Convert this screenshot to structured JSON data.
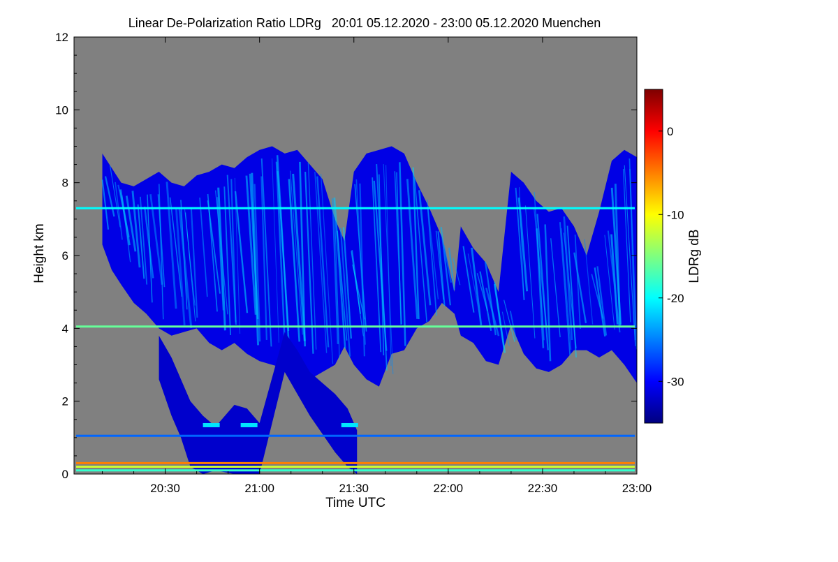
{
  "chart_data": {
    "type": "heatmap",
    "title": "Linear De-Polarization Ratio LDRg   20:01 05.12.2020 - 23:00 05.12.2020 Muenchen",
    "xlabel": "Time UTC",
    "ylabel": "Height km",
    "x_ticks": [
      "20:30",
      "21:00",
      "21:30",
      "22:00",
      "22:30",
      "23:00"
    ],
    "x_tick_minutes": [
      1230,
      1260,
      1290,
      1320,
      1350,
      1380
    ],
    "xlim_minutes": [
      1201,
      1380
    ],
    "y_ticks": [
      "0",
      "2",
      "4",
      "6",
      "8",
      "10",
      "12"
    ],
    "ylim": [
      0,
      12
    ],
    "background_color": "#808080",
    "colorbar": {
      "label": "LDRg dB",
      "ticks": [
        "0",
        "-10",
        "-20",
        "-30"
      ],
      "tick_values": [
        0,
        -10,
        -20,
        -30
      ],
      "range": [
        -35,
        5
      ],
      "colormap": "jet",
      "colors": [
        "#00007f",
        "#0000ff",
        "#007fff",
        "#00ffff",
        "#7fff7f",
        "#ffff00",
        "#ff7f00",
        "#ff0000",
        "#7f0000"
      ]
    },
    "layers": [
      {
        "kind": "ice-cloud",
        "ldr_db": -31,
        "segments": [
          [
            1210,
            8.8,
            6.3
          ],
          [
            1213,
            8.4,
            5.6
          ],
          [
            1216,
            8.0,
            5.2
          ],
          [
            1220,
            7.9,
            4.7
          ],
          [
            1224,
            8.1,
            4.4
          ],
          [
            1228,
            8.3,
            4.0
          ],
          [
            1232,
            8.0,
            3.8
          ],
          [
            1236,
            7.9,
            3.9
          ],
          [
            1240,
            8.2,
            4.0
          ],
          [
            1244,
            8.3,
            3.6
          ],
          [
            1248,
            8.5,
            3.4
          ],
          [
            1252,
            8.4,
            3.6
          ],
          [
            1256,
            8.7,
            3.3
          ],
          [
            1260,
            8.9,
            3.1
          ],
          [
            1264,
            9.0,
            3.0
          ],
          [
            1268,
            8.8,
            2.9
          ],
          [
            1272,
            8.9,
            2.7
          ],
          [
            1276,
            8.5,
            2.6
          ],
          [
            1280,
            8.1,
            2.8
          ],
          [
            1284,
            7.0,
            3.0
          ],
          [
            1287,
            6.4,
            3.5
          ],
          [
            1290,
            8.3,
            3.0
          ],
          [
            1294,
            8.8,
            2.6
          ],
          [
            1298,
            8.9,
            2.4
          ],
          [
            1302,
            9.0,
            3.3
          ],
          [
            1306,
            8.8,
            3.4
          ],
          [
            1310,
            8.0,
            4.0
          ],
          [
            1314,
            7.3,
            4.2
          ],
          [
            1318,
            6.5,
            4.7
          ],
          [
            1322,
            5.0,
            4.4
          ],
          [
            1324,
            6.8,
            3.8
          ],
          [
            1328,
            6.2,
            3.6
          ],
          [
            1332,
            5.8,
            3.1
          ],
          [
            1336,
            5.0,
            3.0
          ],
          [
            1340,
            8.3,
            4.1
          ],
          [
            1344,
            8.0,
            3.3
          ],
          [
            1348,
            7.5,
            2.9
          ],
          [
            1352,
            7.2,
            2.8
          ],
          [
            1356,
            7.3,
            3.0
          ],
          [
            1360,
            6.8,
            3.4
          ],
          [
            1364,
            6.0,
            3.4
          ],
          [
            1368,
            7.2,
            3.2
          ],
          [
            1372,
            8.6,
            3.4
          ],
          [
            1376,
            8.9,
            3.0
          ],
          [
            1380,
            8.7,
            2.5
          ]
        ]
      },
      {
        "kind": "fall-streak",
        "ldr_db": -32,
        "segments": [
          [
            1228,
            3.8,
            2.6
          ],
          [
            1232,
            3.2,
            1.6
          ],
          [
            1235,
            2.6,
            1.0
          ],
          [
            1238,
            2.0,
            0.2
          ],
          [
            1242,
            1.6,
            0.0
          ],
          [
            1246,
            1.3,
            0.1
          ],
          [
            1252,
            1.9,
            0.0
          ],
          [
            1256,
            1.8,
            0.0
          ],
          [
            1260,
            1.4,
            0.0
          ],
          [
            1268,
            3.9,
            2.8
          ],
          [
            1272,
            3.4,
            2.2
          ],
          [
            1276,
            2.8,
            1.6
          ],
          [
            1280,
            2.5,
            1.1
          ],
          [
            1284,
            2.2,
            0.6
          ],
          [
            1288,
            1.8,
            0.2
          ],
          [
            1291,
            1.2,
            0.0
          ]
        ]
      },
      {
        "kind": "bright-band",
        "ldr_db": -21,
        "segments": [
          [
            1242,
            1.4,
            1.3
          ],
          [
            1254,
            1.4,
            1.3
          ],
          [
            1286,
            1.4,
            1.3
          ]
        ]
      },
      {
        "kind": "artifact-line",
        "height_km": 7.3,
        "ldr_db": -20
      },
      {
        "kind": "artifact-line",
        "height_km": 4.05,
        "ldr_db": -16
      },
      {
        "kind": "artifact-line",
        "height_km": 1.05,
        "ldr_db": -26
      },
      {
        "kind": "artifact-line",
        "height_km": 0.3,
        "ldr_db": -5
      },
      {
        "kind": "artifact-line",
        "height_km": 0.2,
        "ldr_db": -12
      },
      {
        "kind": "artifact-line",
        "height_km": 0.1,
        "ldr_db": -18
      }
    ]
  }
}
